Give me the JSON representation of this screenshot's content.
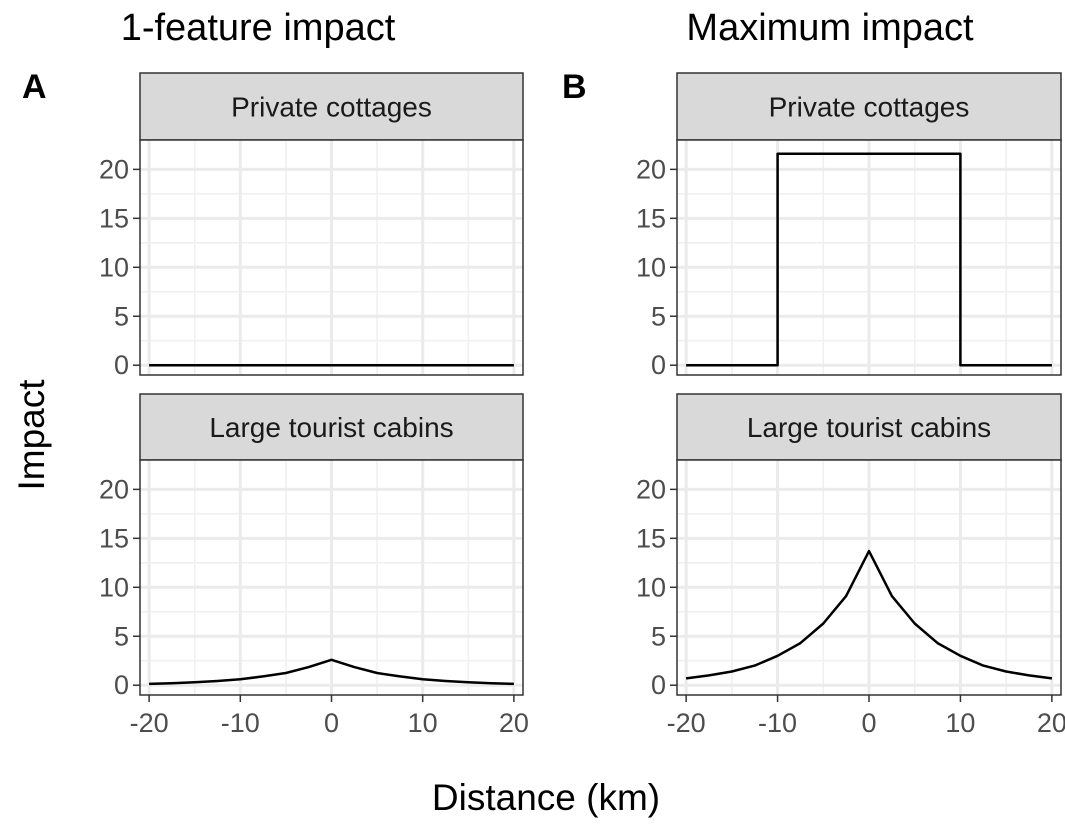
{
  "chart_data": {
    "type": "line",
    "ylabel": "Impact",
    "xlabel": "Distance (km)",
    "xlim": [
      -21,
      21
    ],
    "ylim": [
      -1,
      23
    ],
    "x_ticks": [
      -20,
      -10,
      0,
      10,
      20
    ],
    "x_tick_labels": [
      "-20",
      "-10",
      "0",
      "10",
      "20"
    ],
    "y_ticks": [
      0,
      5,
      10,
      15,
      20
    ],
    "y_tick_labels": [
      "0",
      "5",
      "10",
      "15",
      "20"
    ],
    "grid": true,
    "columns": [
      {
        "title": "1-feature impact",
        "letter": "A"
      },
      {
        "title": "Maximum impact",
        "letter": "B"
      }
    ],
    "rows": [
      "Private cottages",
      "Large tourist cabins"
    ],
    "panels": [
      {
        "column": 0,
        "row": 0,
        "strip": "Private cottages",
        "x": [
          -20,
          20
        ],
        "y": [
          0,
          0
        ]
      },
      {
        "column": 0,
        "row": 1,
        "strip": "Large tourist cabins",
        "x": [
          -20,
          -17.5,
          -15,
          -12.5,
          -10,
          -7.5,
          -5,
          -2.5,
          0,
          2.5,
          5,
          7.5,
          10,
          12.5,
          15,
          17.5,
          20
        ],
        "y": [
          0.13,
          0.2,
          0.3,
          0.43,
          0.6,
          0.9,
          1.25,
          1.85,
          2.6,
          1.85,
          1.25,
          0.9,
          0.6,
          0.43,
          0.3,
          0.2,
          0.13
        ]
      },
      {
        "column": 1,
        "row": 0,
        "strip": "Private cottages",
        "x": [
          -20,
          -10,
          -10,
          10,
          10,
          20
        ],
        "y": [
          0,
          0,
          21.6,
          21.6,
          0,
          0
        ]
      },
      {
        "column": 1,
        "row": 1,
        "strip": "Large tourist cabins",
        "x": [
          -20,
          -17.5,
          -15,
          -12.5,
          -10,
          -7.5,
          -5,
          -2.5,
          0,
          2.5,
          5,
          7.5,
          10,
          12.5,
          15,
          17.5,
          20
        ],
        "y": [
          0.7,
          1.0,
          1.4,
          2.0,
          3.0,
          4.3,
          6.3,
          9.1,
          13.7,
          9.1,
          6.3,
          4.3,
          3.0,
          2.0,
          1.4,
          1.0,
          0.7
        ]
      }
    ]
  }
}
